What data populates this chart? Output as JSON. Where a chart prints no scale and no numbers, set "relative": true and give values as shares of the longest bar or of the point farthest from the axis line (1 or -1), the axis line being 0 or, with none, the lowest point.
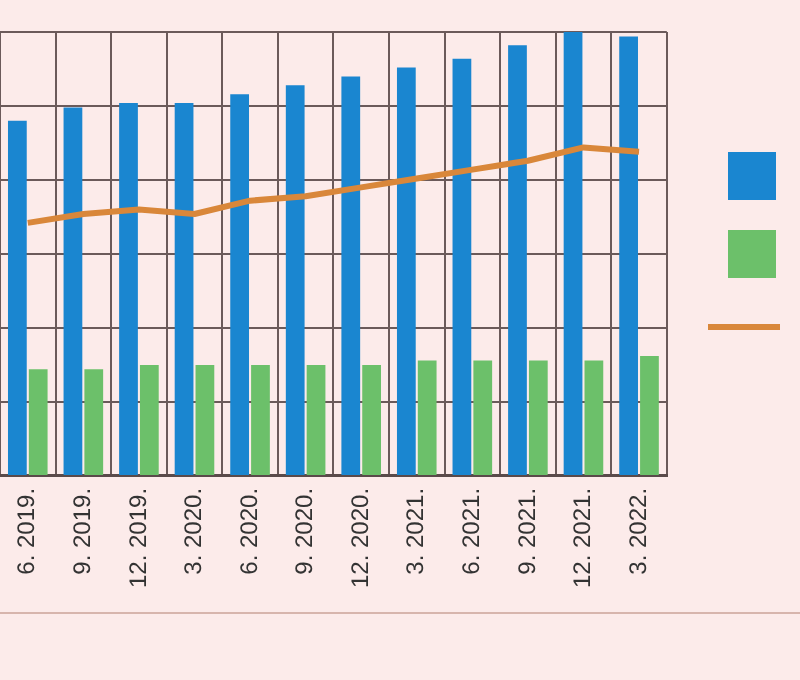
{
  "chart_data": {
    "type": "bar",
    "relative": true,
    "categories": [
      "6. 2019.",
      "9. 2019.",
      "12. 2019.",
      "3. 2020.",
      "6. 2020.",
      "9. 2020.",
      "12. 2020.",
      "3. 2021.",
      "6. 2021.",
      "9. 2021.",
      "12. 2021.",
      "3. 2022."
    ],
    "series": [
      {
        "color": "#1a86d0",
        "values": [
          0.8,
          0.83,
          0.84,
          0.84,
          0.86,
          0.88,
          0.9,
          0.92,
          0.94,
          0.97,
          1,
          0.99
        ]
      },
      {
        "color": "#6cc06a",
        "values": [
          0.24,
          0.24,
          0.25,
          0.25,
          0.25,
          0.25,
          0.25,
          0.26,
          0.26,
          0.26,
          0.26,
          0.27
        ]
      },
      {
        "type": "line",
        "color": "#d9873a",
        "values": [
          0.57,
          0.59,
          0.6,
          0.59,
          0.62,
          0.63,
          0.65,
          0.67,
          0.69,
          0.71,
          0.74,
          0.73
        ]
      }
    ],
    "grid": true,
    "marker": "none"
  }
}
